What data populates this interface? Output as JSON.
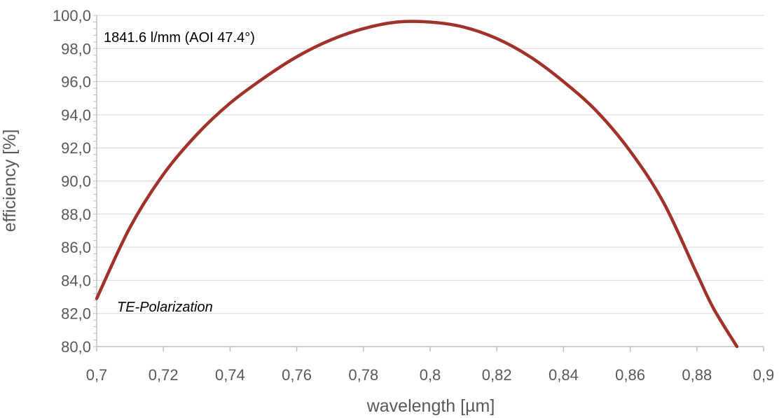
{
  "chart_data": {
    "type": "line",
    "xlabel": "wavelength [µm]",
    "ylabel": "efficiency [%]",
    "xlim": [
      0.7,
      0.9
    ],
    "ylim": [
      80,
      100
    ],
    "x_ticks": [
      0.7,
      0.72,
      0.74,
      0.76,
      0.78,
      0.8,
      0.82,
      0.84,
      0.86,
      0.88,
      0.9
    ],
    "x_tick_labels": [
      "0,7",
      "0,72",
      "0,74",
      "0,76",
      "0,78",
      "0,8",
      "0,82",
      "0,84",
      "0,86",
      "0,88",
      "0,9"
    ],
    "y_ticks": [
      80,
      82,
      84,
      86,
      88,
      90,
      92,
      94,
      96,
      98,
      100
    ],
    "y_tick_labels": [
      "80,0",
      "82,0",
      "84,0",
      "86,0",
      "88,0",
      "90,0",
      "92,0",
      "94,0",
      "96,0",
      "98,0",
      "100,0"
    ],
    "grid": "horizontal",
    "annotations": [
      "1841.6 l/mm (AOI 47.4°)",
      "TE-Polarization"
    ],
    "series": [
      {
        "color": "#a0322a",
        "x": [
          0.7,
          0.71,
          0.72,
          0.73,
          0.74,
          0.75,
          0.76,
          0.77,
          0.78,
          0.79,
          0.8,
          0.81,
          0.82,
          0.83,
          0.84,
          0.85,
          0.86,
          0.87,
          0.88,
          0.885,
          0.892
        ],
        "y": [
          82.9,
          87.2,
          90.4,
          92.8,
          94.7,
          96.2,
          97.5,
          98.5,
          99.2,
          99.6,
          99.6,
          99.3,
          98.6,
          97.5,
          96.0,
          94.2,
          91.8,
          88.7,
          84.4,
          82.3,
          80.0
        ]
      }
    ]
  }
}
